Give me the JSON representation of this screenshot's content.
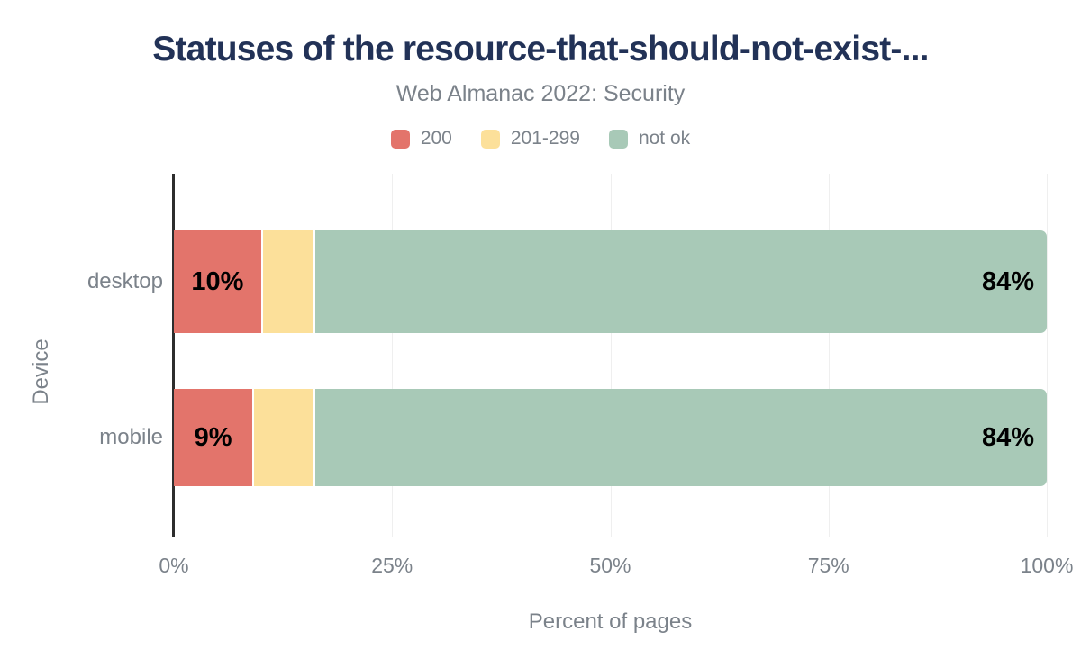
{
  "chart_data": {
    "type": "bar",
    "orientation": "horizontal",
    "stacked": true,
    "title": "Statuses of the resource-that-should-not-exist-...",
    "subtitle": "Web Almanac 2022: Security",
    "categories": [
      "desktop",
      "mobile"
    ],
    "series": [
      {
        "name": "200",
        "color": "#e3746b",
        "values": [
          10,
          9
        ],
        "labels": [
          "10%",
          "9%"
        ],
        "label_align": "center"
      },
      {
        "name": "201-299",
        "color": "#fce09a",
        "values": [
          6,
          7
        ],
        "labels": [
          "",
          ""
        ],
        "label_align": "center"
      },
      {
        "name": "not ok",
        "color": "#a8c9b7",
        "values": [
          84,
          84
        ],
        "labels": [
          "84%",
          "84%"
        ],
        "label_align": "right"
      }
    ],
    "xlabel": "Percent of pages",
    "ylabel": "Device",
    "xlim": [
      0,
      100
    ],
    "x_ticks": [
      "0%",
      "25%",
      "50%",
      "75%",
      "100%"
    ],
    "grid": true,
    "legend_position": "top",
    "style": {
      "title_color": "#223257",
      "muted_text_color": "#7b828a",
      "gridline_color": "#efefef",
      "axis_line_color": "#2d2d2d",
      "value_label_color": "#000000"
    }
  }
}
